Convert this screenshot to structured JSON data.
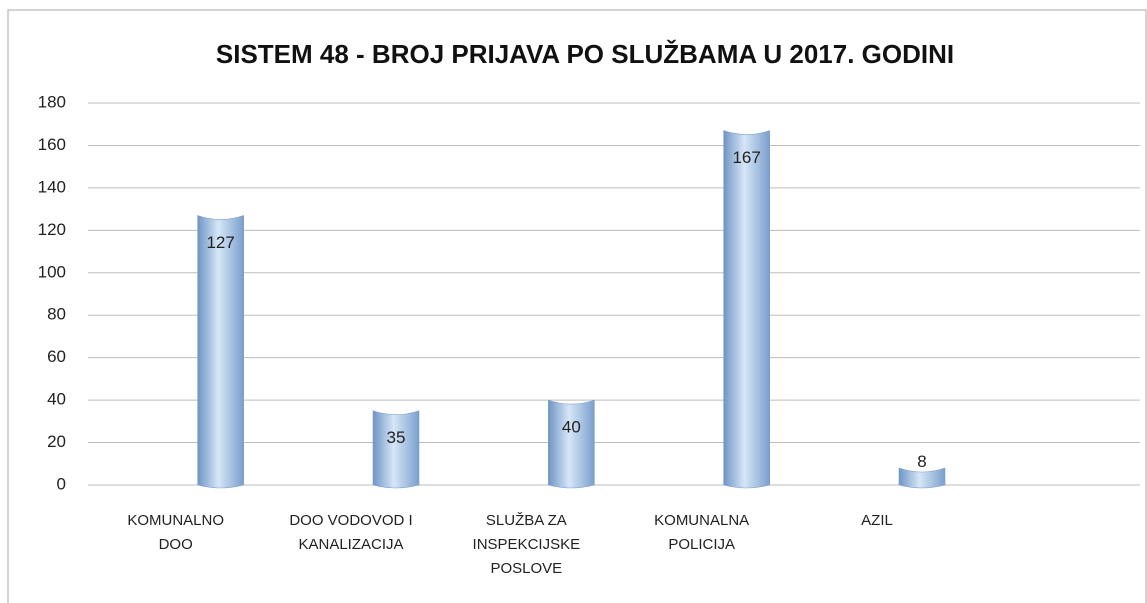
{
  "chart_data": {
    "type": "bar",
    "title": "SISTEM 48 - BROJ PRIJAVA PO SLUŽBAMA U 2017. GODINI",
    "categories": [
      "KOMUNALNO DOO",
      "DOO VODOVOD I KANALIZACIJA",
      "SLUŽBA ZA INSPEKCIJSKE POSLOVE",
      "KOMUNALNA POLICIJA",
      "AZIL",
      null
    ],
    "values": [
      127,
      35,
      40,
      167,
      8,
      null
    ],
    "color": "#9dbde0",
    "ylim": [
      0,
      180
    ],
    "yticks": [
      0,
      20,
      40,
      60,
      80,
      100,
      120,
      140,
      160,
      180
    ],
    "grid": true
  }
}
